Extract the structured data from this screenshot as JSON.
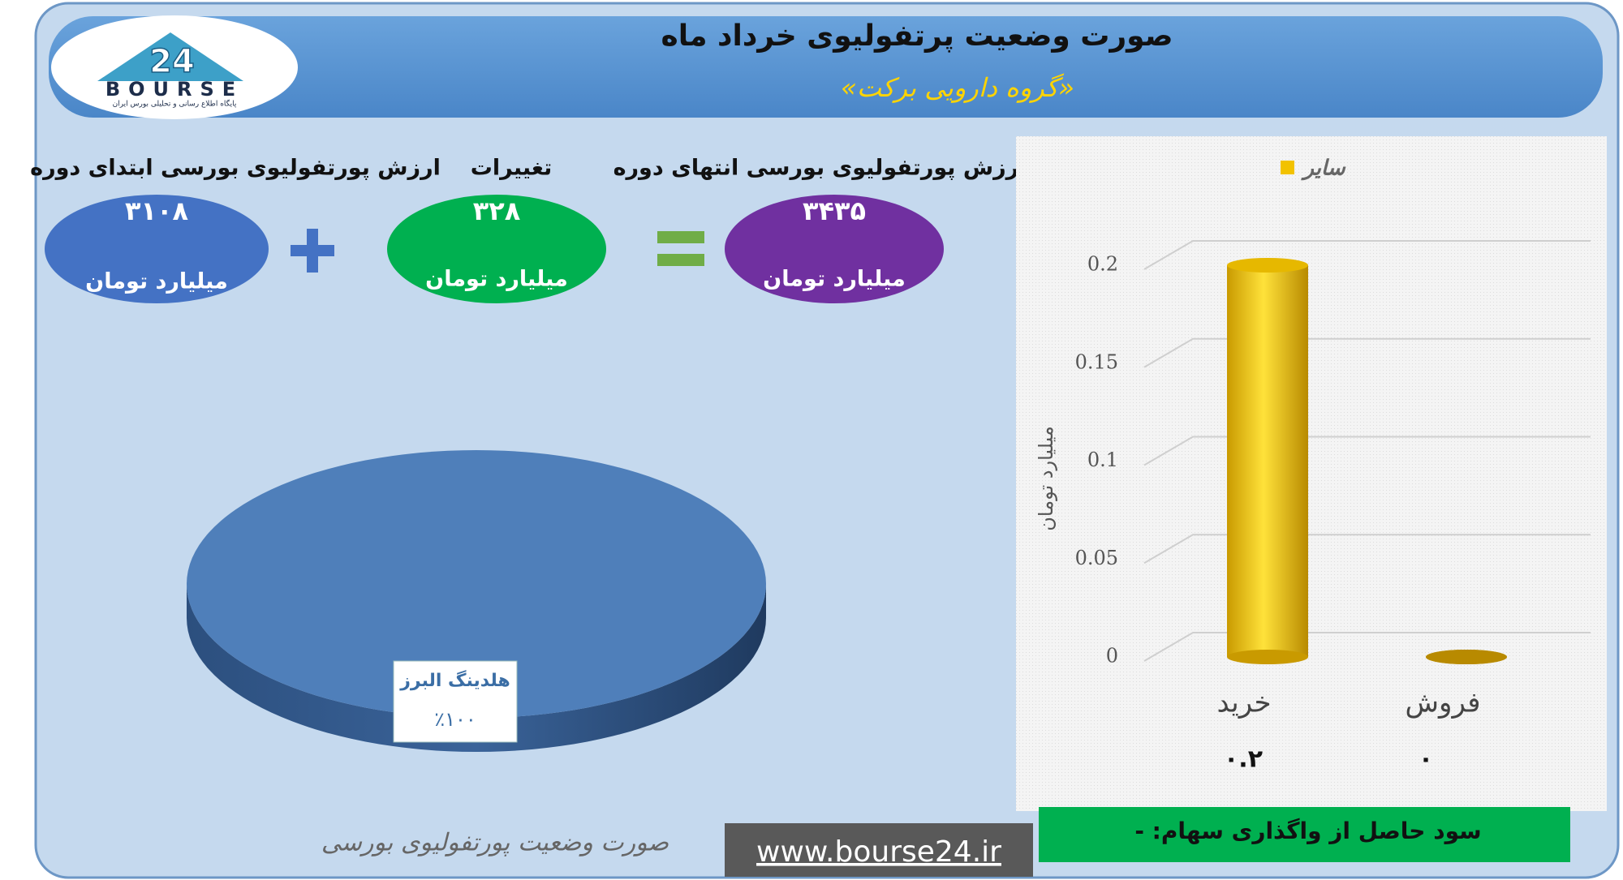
{
  "header": {
    "title": "صورت وضعیت پرتفولیوی خرداد ماه",
    "subtitle": "«گروه دارویی برکت»"
  },
  "logo": {
    "number": "24",
    "name": "BOURSE",
    "tagline": "پایگاه اطلاع رسانی و تحلیلی بورس ایران"
  },
  "summary": [
    {
      "label": "ارزش پورتفولیوی بورسی ابتدای دوره",
      "value": "۳۱۰۸",
      "unit": "میلیارد تومان"
    },
    {
      "label": "تغییرات",
      "value": "۳۲۸",
      "unit": "میلیارد تومان"
    },
    {
      "label": "ارزش پورتفولیوی بورسی انتهای دوره",
      "value": "۳۴۳۵",
      "unit": "میلیارد تومان"
    }
  ],
  "chart_data": [
    {
      "type": "pie",
      "title": "صورت وضعیت پورتفولیوی بورسی",
      "categories": [
        "هلدینگ البرز"
      ],
      "values": [
        100
      ],
      "value_labels": [
        "٪۱۰۰"
      ],
      "colors": [
        "#4f7fba"
      ]
    },
    {
      "type": "bar",
      "y_label": "میلیارد تومان",
      "categories": [
        "خرید",
        "فروش"
      ],
      "series": [
        {
          "name": "سایر",
          "color": "#f2c200",
          "values": [
            0.2,
            0
          ],
          "value_labels": [
            "۰.۲",
            "۰"
          ]
        }
      ],
      "ylim": [
        0,
        0.2
      ],
      "yticks": [
        0,
        0.05,
        0.1,
        0.15,
        0.2
      ],
      "grid": true,
      "legend": "top"
    }
  ],
  "footer": {
    "profit": "سود حاصل از واگذاری سهام: -",
    "website": "www.bourse24.ir"
  }
}
